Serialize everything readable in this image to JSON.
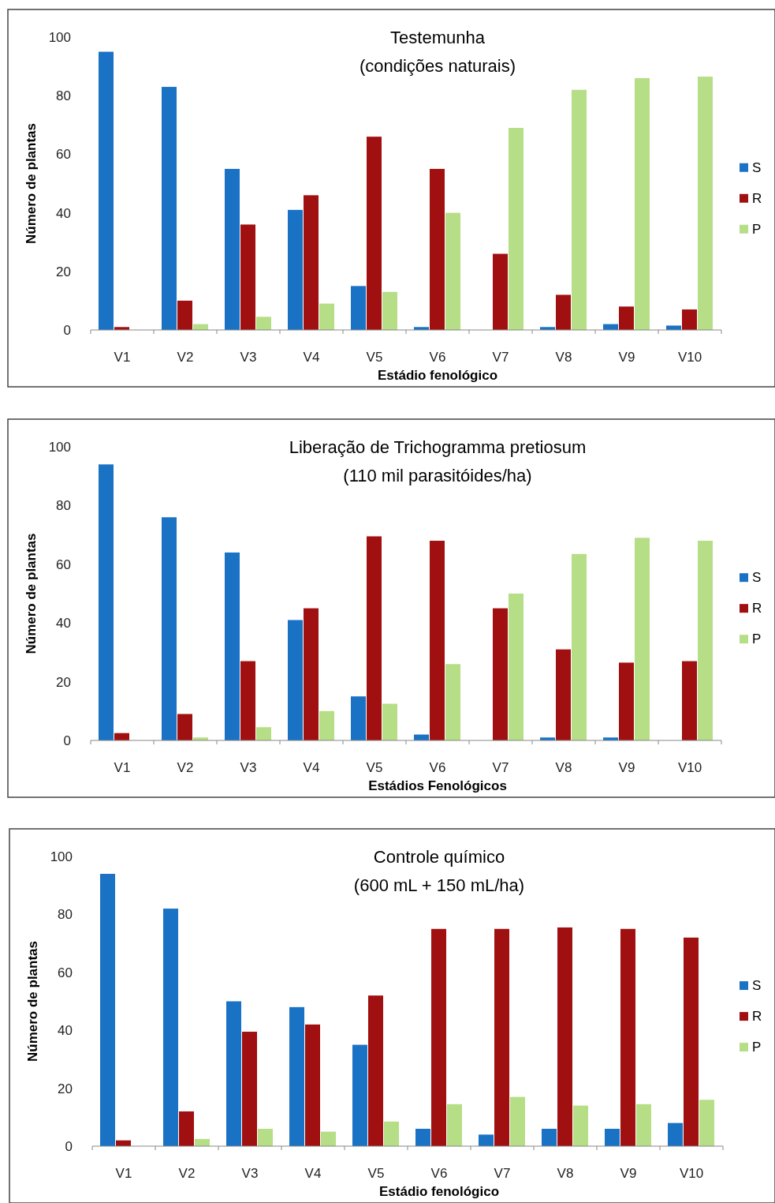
{
  "chart_data": [
    {
      "type": "bar",
      "title": "Testemunha",
      "subtitle": "(condições naturais)",
      "xlabel": "Estádio fenológico",
      "ylabel": "Número de plantas",
      "categories": [
        "V1",
        "V2",
        "V3",
        "V4",
        "V5",
        "V6",
        "V7",
        "V8",
        "V9",
        "V10"
      ],
      "ylim": [
        0,
        100
      ],
      "yticks": [
        0,
        20,
        40,
        60,
        80,
        100
      ],
      "grid": false,
      "legend": "right",
      "series": [
        {
          "name": "S",
          "color": "#1a72c4",
          "values": [
            95,
            83,
            55,
            41,
            15,
            1,
            0,
            1,
            2,
            1.5
          ]
        },
        {
          "name": "R",
          "color": "#a01010",
          "values": [
            1,
            10,
            36,
            46,
            66,
            55,
            26,
            12,
            8,
            7
          ]
        },
        {
          "name": "P",
          "color": "#b5de86",
          "values": [
            0,
            2,
            4.5,
            9,
            13,
            40,
            69,
            82,
            86,
            86.5
          ]
        }
      ]
    },
    {
      "type": "bar",
      "title": "Liberação de Trichogramma pretiosum",
      "subtitle": "(110 mil parasitóides/ha)",
      "xlabel": "Estádios Fenológicos",
      "ylabel": "Número de plantas",
      "categories": [
        "V1",
        "V2",
        "V3",
        "V4",
        "V5",
        "V6",
        "V7",
        "V8",
        "V9",
        "V10"
      ],
      "ylim": [
        0,
        100
      ],
      "yticks": [
        0,
        20,
        40,
        60,
        80,
        100
      ],
      "grid": false,
      "legend": "right",
      "series": [
        {
          "name": "S",
          "color": "#1a72c4",
          "values": [
            94,
            76,
            64,
            41,
            15,
            2,
            0,
            1,
            1,
            0
          ]
        },
        {
          "name": "R",
          "color": "#a01010",
          "values": [
            2.5,
            9,
            27,
            45,
            69.5,
            68,
            45,
            31,
            26.5,
            27
          ]
        },
        {
          "name": "P",
          "color": "#b5de86",
          "values": [
            0,
            1,
            4.5,
            10,
            12.5,
            26,
            50,
            63.5,
            69,
            68
          ]
        }
      ]
    },
    {
      "type": "bar",
      "title": "Controle químico",
      "subtitle": "(600 mL + 150 mL/ha)",
      "xlabel": "Estádio fenológico",
      "ylabel": "Número de plantas",
      "categories": [
        "V1",
        "V2",
        "V3",
        "V4",
        "V5",
        "V6",
        "V7",
        "V8",
        "V9",
        "V10"
      ],
      "ylim": [
        0,
        100
      ],
      "yticks": [
        0,
        20,
        40,
        60,
        80,
        100
      ],
      "grid": false,
      "legend": "right",
      "series": [
        {
          "name": "S",
          "color": "#1a72c4",
          "values": [
            94,
            82,
            50,
            48,
            35,
            6,
            4,
            6,
            6,
            8
          ]
        },
        {
          "name": "R",
          "color": "#a01010",
          "values": [
            2,
            12,
            39.5,
            42,
            52,
            75,
            75,
            75.5,
            75,
            72
          ]
        },
        {
          "name": "P",
          "color": "#b5de86",
          "values": [
            0,
            2.5,
            6,
            5,
            8.5,
            14.5,
            17,
            14,
            14.5,
            16
          ]
        }
      ]
    }
  ]
}
